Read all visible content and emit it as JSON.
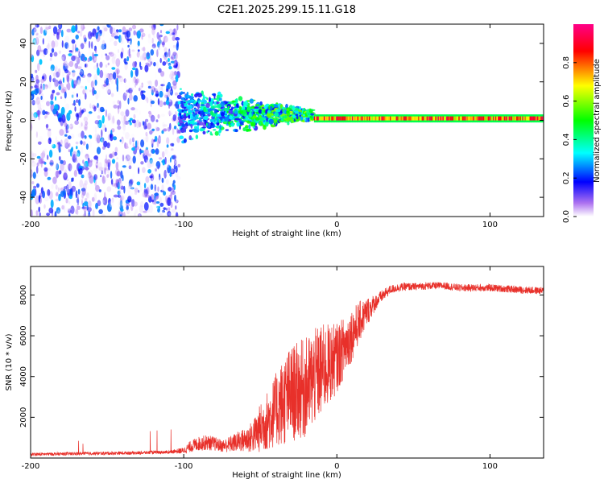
{
  "title": "C2E1.2025.299.15.11.G18",
  "colors": {
    "snr_line": "#e8302a",
    "axis": "#000000"
  },
  "chart_data": [
    {
      "type": "heatmap",
      "name": "spectrogram",
      "xlabel": "Height of straight line (km)",
      "ylabel": "Frequency (Hz)",
      "xlim": [
        -200,
        135
      ],
      "ylim": [
        -50,
        50
      ],
      "x_ticks": [
        -200,
        -100,
        0,
        100
      ],
      "y_ticks": [
        -40,
        -20,
        0,
        20,
        40
      ],
      "colorbar": {
        "label": "Normalized spectral amplitude",
        "range": [
          0,
          1
        ],
        "ticks": [
          "0.0",
          "0.2",
          "0.4",
          "0.6",
          "0.8"
        ],
        "tick_values": [
          0,
          0.2,
          0.4,
          0.6,
          0.8
        ],
        "stops": [
          "#ffffff",
          "#ad72f0",
          "#0000ff",
          "#00ffff",
          "#00ff00",
          "#ffff00",
          "#ff0000",
          "#ff0088"
        ]
      },
      "features": [
        {
          "desc": "diffuse noise",
          "x_range": [
            -200,
            -103
          ],
          "freq_range": [
            -50,
            50
          ],
          "amplitude": 0.15
        },
        {
          "desc": "transition band",
          "x_range": [
            -103,
            -15
          ],
          "freq_center": 3,
          "freq_halfwidth": [
            15,
            3
          ],
          "amplitude": [
            0.3,
            0.6
          ]
        },
        {
          "desc": "carrier line",
          "x_range": [
            -15,
            135
          ],
          "freq_center": 1,
          "amplitude": 0.95
        }
      ]
    },
    {
      "type": "line",
      "name": "snr",
      "xlabel": "Height of straight line (km)",
      "ylabel": "SNR (10 * v/v)",
      "xlim": [
        -200,
        135
      ],
      "ylim": [
        0,
        9400
      ],
      "x_ticks": [
        -200,
        -100,
        0,
        100
      ],
      "y_ticks": [
        2000,
        4000,
        6000,
        8000
      ],
      "series": [
        {
          "name": "SNR",
          "x": [
            -200,
            -190,
            -180,
            -170,
            -160,
            -150,
            -140,
            -130,
            -120,
            -110,
            -100,
            -95,
            -90,
            -85,
            -80,
            -75,
            -70,
            -65,
            -60,
            -55,
            -50,
            -45,
            -40,
            -35,
            -30,
            -25,
            -20,
            -15,
            -10,
            -5,
            0,
            5,
            10,
            15,
            20,
            25,
            30,
            35,
            40,
            45,
            50,
            60,
            70,
            80,
            90,
            100,
            110,
            120,
            135
          ],
          "y": [
            150,
            170,
            180,
            190,
            200,
            210,
            220,
            230,
            250,
            270,
            320,
            500,
            600,
            650,
            600,
            500,
            550,
            650,
            700,
            800,
            1100,
            1400,
            1800,
            2100,
            2400,
            2600,
            2700,
            3200,
            3600,
            4000,
            4400,
            5000,
            5700,
            6400,
            7000,
            7500,
            7900,
            8200,
            8300,
            8350,
            8350,
            8400,
            8400,
            8300,
            8300,
            8300,
            8250,
            8200,
            8150
          ],
          "noise": [
            80,
            80,
            80,
            80,
            80,
            80,
            80,
            80,
            80,
            80,
            150,
            300,
            350,
            380,
            350,
            300,
            400,
            500,
            600,
            800,
            1200,
            1500,
            1800,
            2200,
            2400,
            2400,
            2500,
            2400,
            2300,
            2000,
            1700,
            1500,
            1300,
            1000,
            700,
            400,
            280,
            220,
            200,
            200,
            180,
            180,
            180,
            180,
            180,
            180,
            180,
            180,
            180
          ]
        }
      ]
    }
  ]
}
